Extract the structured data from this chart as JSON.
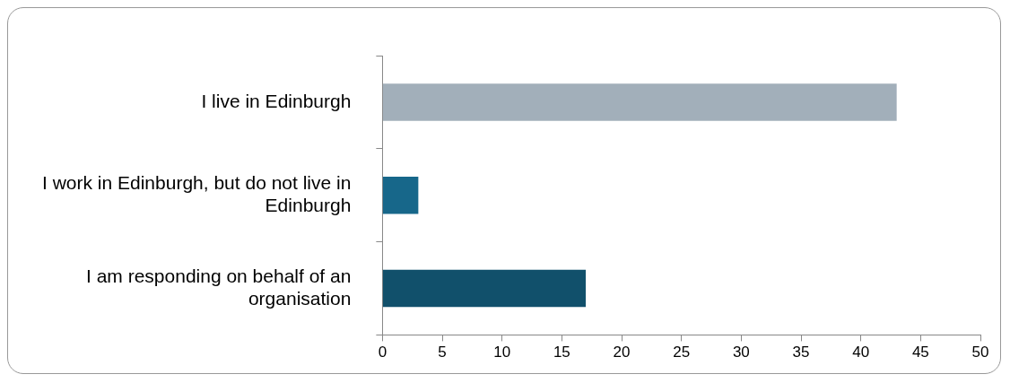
{
  "chart_data": {
    "type": "bar",
    "orientation": "horizontal",
    "categories": [
      "I live in Edinburgh",
      "I work in Edinburgh, but do not live in Edinburgh",
      "I am responding on behalf of an organisation"
    ],
    "values": [
      43,
      3,
      17
    ],
    "colors": [
      "#a2afba",
      "#17678a",
      "#11506b"
    ],
    "xlim": [
      0,
      50
    ],
    "xticks": [
      0,
      5,
      10,
      15,
      20,
      25,
      30,
      35,
      40,
      45,
      50
    ],
    "grid": false,
    "legend": false
  }
}
